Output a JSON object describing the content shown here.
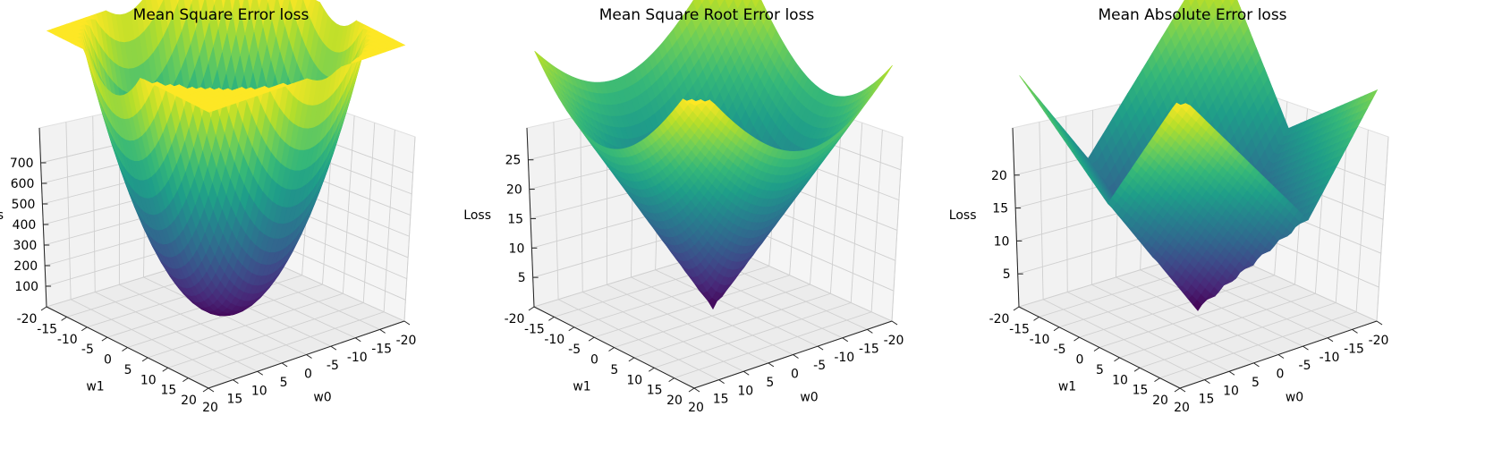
{
  "chart_data": [
    {
      "type": "surface",
      "title": "Mean Square Error loss",
      "xlabel": "w0",
      "ylabel": "w1",
      "zlabel": "Loss",
      "x_range": [
        -20,
        20
      ],
      "y_range": [
        -20,
        20
      ],
      "zlim": [
        0,
        800
      ],
      "x_ticks": [
        -20,
        -15,
        -10,
        -5,
        0,
        5,
        10,
        15,
        20
      ],
      "y_ticks": [
        -20,
        -15,
        -10,
        -5,
        0,
        5,
        10,
        15,
        20
      ],
      "z_ticks": [
        100,
        200,
        300,
        400,
        500,
        600,
        700
      ],
      "surface": {
        "loss": "mse",
        "min_loss": 2,
        "max_loss": 780
      },
      "colormap": "viridis",
      "grid": true
    },
    {
      "type": "surface",
      "title": "Mean Square Root Error loss",
      "xlabel": "w0",
      "ylabel": "w1",
      "zlabel": "Loss",
      "x_range": [
        -20,
        20
      ],
      "y_range": [
        -20,
        20
      ],
      "zlim": [
        0,
        28
      ],
      "x_ticks": [
        -20,
        -15,
        -10,
        -5,
        0,
        5,
        10,
        15,
        20
      ],
      "y_ticks": [
        -20,
        -15,
        -10,
        -5,
        0,
        5,
        10,
        15,
        20
      ],
      "z_ticks": [
        5,
        10,
        15,
        20,
        25
      ],
      "surface": {
        "loss": "rmse",
        "min_loss": 0.5,
        "max_loss": 28
      },
      "colormap": "viridis",
      "grid": true
    },
    {
      "type": "surface",
      "title": "Mean Absolute Error loss",
      "xlabel": "w0",
      "ylabel": "w1",
      "zlabel": "Loss",
      "x_range": [
        -20,
        20
      ],
      "y_range": [
        -20,
        20
      ],
      "zlim": [
        0,
        25
      ],
      "x_ticks": [
        -20,
        -15,
        -10,
        -5,
        0,
        5,
        10,
        15,
        20
      ],
      "y_ticks": [
        -20,
        -15,
        -10,
        -5,
        0,
        5,
        10,
        15,
        20
      ],
      "z_ticks": [
        5,
        10,
        15,
        20
      ],
      "surface": {
        "loss": "mae",
        "min_loss": 0.5,
        "max_loss": 25
      },
      "colormap": "viridis",
      "grid": true
    }
  ]
}
